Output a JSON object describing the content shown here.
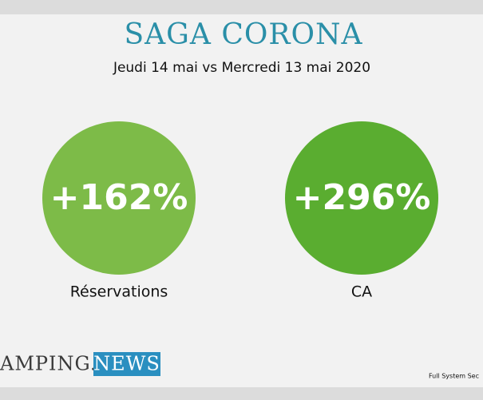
{
  "header": {
    "title": "SAGA CORONA",
    "subtitle": "Jeudi 14 mai vs Mercredi 13 mai 2020"
  },
  "stats": [
    {
      "value": "+162%",
      "label": "Réservations"
    },
    {
      "value": "+296%",
      "label": "CA"
    }
  ],
  "footer": {
    "logo_left": "AMPING.",
    "logo_right": "NEWS",
    "source": "Full System Sec"
  }
}
